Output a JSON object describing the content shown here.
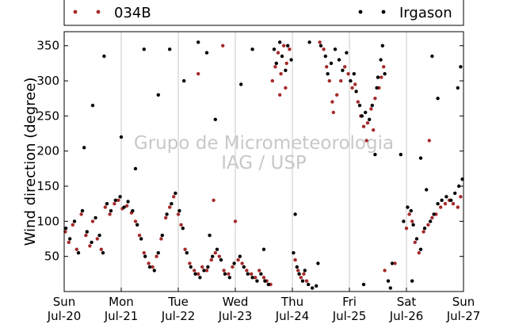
{
  "chart_data": {
    "type": "scatter",
    "ylabel": "Wind direction (degree)",
    "ylim": [
      0,
      370
    ],
    "yticks": [
      50,
      100,
      150,
      200,
      250,
      300,
      350
    ],
    "xlim": [
      0,
      7
    ],
    "xticks": [
      {
        "x": 0,
        "day": "Sun",
        "date": "Jul-20"
      },
      {
        "x": 1,
        "day": "Mon",
        "date": "Jul-21"
      },
      {
        "x": 2,
        "day": "Tue",
        "date": "Jul-22"
      },
      {
        "x": 3,
        "day": "Wed",
        "date": "Jul-23"
      },
      {
        "x": 4,
        "day": "Thu",
        "date": "Jul-24"
      },
      {
        "x": 5,
        "day": "Fri",
        "date": "Jul-25"
      },
      {
        "x": 6,
        "day": "Sat",
        "date": "Jul-26"
      },
      {
        "x": 7,
        "day": "Sun",
        "date": "Jul-27"
      }
    ],
    "vertical_grid": true,
    "legend_placement": "top",
    "watermark": [
      "Grupo de Micrometeorologia",
      "IAG / USP"
    ],
    "series": [
      {
        "name": "034B",
        "color": "#a52a2a",
        "points": [
          [
            0.02,
            85
          ],
          [
            0.08,
            70
          ],
          [
            0.15,
            95
          ],
          [
            0.22,
            60
          ],
          [
            0.3,
            110
          ],
          [
            0.38,
            80
          ],
          [
            0.45,
            65
          ],
          [
            0.5,
            100
          ],
          [
            0.58,
            75
          ],
          [
            0.65,
            60
          ],
          [
            0.72,
            120
          ],
          [
            0.8,
            110
          ],
          [
            0.88,
            125
          ],
          [
            0.95,
            130
          ],
          [
            1.02,
            118
          ],
          [
            1.1,
            122
          ],
          [
            1.18,
            112
          ],
          [
            1.25,
            100
          ],
          [
            1.32,
            80
          ],
          [
            1.4,
            55
          ],
          [
            1.48,
            40
          ],
          [
            1.55,
            35
          ],
          [
            1.62,
            50
          ],
          [
            1.7,
            75
          ],
          [
            1.78,
            105
          ],
          [
            1.85,
            120
          ],
          [
            1.92,
            135
          ],
          [
            2.0,
            110
          ],
          [
            2.05,
            95
          ],
          [
            2.12,
            60
          ],
          [
            2.2,
            40
          ],
          [
            2.28,
            30
          ],
          [
            2.35,
            25
          ],
          [
            2.42,
            35
          ],
          [
            2.5,
            30
          ],
          [
            2.58,
            45
          ],
          [
            2.65,
            55
          ],
          [
            2.72,
            50
          ],
          [
            2.8,
            30
          ],
          [
            2.88,
            25
          ],
          [
            2.95,
            35
          ],
          [
            3.05,
            45
          ],
          [
            3.12,
            40
          ],
          [
            3.2,
            30
          ],
          [
            3.28,
            25
          ],
          [
            3.35,
            20
          ],
          [
            3.42,
            30
          ],
          [
            3.5,
            20
          ],
          [
            3.55,
            15
          ],
          [
            3.62,
            10
          ],
          [
            3.7,
            320
          ],
          [
            3.75,
            340
          ],
          [
            3.8,
            310
          ],
          [
            3.85,
            350
          ],
          [
            3.9,
            325
          ],
          [
            3.95,
            345
          ],
          [
            3.65,
            300
          ],
          [
            3.78,
            280
          ],
          [
            3.88,
            290
          ],
          [
            4.05,
            45
          ],
          [
            4.1,
            30
          ],
          [
            4.15,
            20
          ],
          [
            4.2,
            25
          ],
          [
            4.25,
            15
          ],
          [
            4.48,
            355
          ],
          [
            4.55,
            345
          ],
          [
            4.6,
            320
          ],
          [
            4.65,
            300
          ],
          [
            4.7,
            270
          ],
          [
            4.72,
            255
          ],
          [
            4.78,
            280
          ],
          [
            4.85,
            300
          ],
          [
            4.92,
            320
          ],
          [
            4.98,
            310
          ],
          [
            5.05,
            290
          ],
          [
            5.1,
            295
          ],
          [
            5.15,
            270
          ],
          [
            5.2,
            250
          ],
          [
            5.25,
            235
          ],
          [
            5.32,
            240
          ],
          [
            5.38,
            260
          ],
          [
            5.45,
            275
          ],
          [
            5.52,
            290
          ],
          [
            5.56,
            305
          ],
          [
            5.6,
            320
          ],
          [
            5.42,
            230
          ],
          [
            5.3,
            215
          ],
          [
            5.8,
            40
          ],
          [
            5.62,
            30
          ],
          [
            6.0,
            90
          ],
          [
            6.05,
            110
          ],
          [
            6.1,
            100
          ],
          [
            6.15,
            70
          ],
          [
            6.22,
            55
          ],
          [
            6.3,
            85
          ],
          [
            6.38,
            95
          ],
          [
            6.45,
            105
          ],
          [
            6.52,
            110
          ],
          [
            6.6,
            120
          ],
          [
            6.68,
            125
          ],
          [
            6.75,
            130
          ],
          [
            6.82,
            125
          ],
          [
            6.9,
            120
          ],
          [
            6.95,
            135
          ],
          [
            6.4,
            215
          ],
          [
            2.35,
            310
          ],
          [
            2.62,
            130
          ],
          [
            3.0,
            100
          ],
          [
            2.78,
            350
          ]
        ]
      },
      {
        "name": "Irgason",
        "color": "#000000",
        "points": [
          [
            0.03,
            90
          ],
          [
            0.1,
            75
          ],
          [
            0.18,
            100
          ],
          [
            0.25,
            55
          ],
          [
            0.32,
            115
          ],
          [
            0.4,
            85
          ],
          [
            0.48,
            70
          ],
          [
            0.55,
            105
          ],
          [
            0.62,
            80
          ],
          [
            0.68,
            55
          ],
          [
            0.75,
            125
          ],
          [
            0.82,
            115
          ],
          [
            0.9,
            130
          ],
          [
            0.98,
            135
          ],
          [
            1.05,
            120
          ],
          [
            1.12,
            128
          ],
          [
            1.2,
            115
          ],
          [
            1.28,
            95
          ],
          [
            1.35,
            75
          ],
          [
            1.42,
            50
          ],
          [
            1.5,
            35
          ],
          [
            1.58,
            30
          ],
          [
            1.65,
            55
          ],
          [
            1.72,
            80
          ],
          [
            1.8,
            110
          ],
          [
            1.88,
            125
          ],
          [
            1.95,
            140
          ],
          [
            2.02,
            115
          ],
          [
            2.08,
            90
          ],
          [
            2.15,
            55
          ],
          [
            2.22,
            35
          ],
          [
            2.3,
            25
          ],
          [
            2.38,
            20
          ],
          [
            2.45,
            30
          ],
          [
            2.52,
            35
          ],
          [
            2.6,
            50
          ],
          [
            2.68,
            60
          ],
          [
            2.75,
            45
          ],
          [
            2.82,
            25
          ],
          [
            2.9,
            20
          ],
          [
            2.98,
            40
          ],
          [
            3.08,
            50
          ],
          [
            3.15,
            35
          ],
          [
            3.22,
            25
          ],
          [
            3.3,
            20
          ],
          [
            3.38,
            15
          ],
          [
            3.45,
            25
          ],
          [
            3.52,
            15
          ],
          [
            3.58,
            10
          ],
          [
            3.68,
            345
          ],
          [
            3.72,
            325
          ],
          [
            3.78,
            355
          ],
          [
            3.82,
            335
          ],
          [
            3.88,
            315
          ],
          [
            3.92,
            350
          ],
          [
            3.98,
            330
          ],
          [
            4.02,
            55
          ],
          [
            4.08,
            35
          ],
          [
            4.12,
            25
          ],
          [
            4.18,
            15
          ],
          [
            4.22,
            30
          ],
          [
            4.28,
            10
          ],
          [
            4.35,
            5
          ],
          [
            4.42,
            8
          ],
          [
            4.5,
            350
          ],
          [
            4.58,
            335
          ],
          [
            4.62,
            310
          ],
          [
            4.68,
            325
          ],
          [
            4.75,
            345
          ],
          [
            4.82,
            330
          ],
          [
            4.88,
            315
          ],
          [
            4.95,
            340
          ],
          [
            5.02,
            300
          ],
          [
            5.08,
            310
          ],
          [
            5.12,
            285
          ],
          [
            5.18,
            265
          ],
          [
            5.22,
            250
          ],
          [
            5.28,
            255
          ],
          [
            5.35,
            245
          ],
          [
            5.4,
            265
          ],
          [
            5.48,
            290
          ],
          [
            5.55,
            330
          ],
          [
            5.58,
            350
          ],
          [
            5.62,
            310
          ],
          [
            5.5,
            305
          ],
          [
            5.45,
            195
          ],
          [
            5.68,
            15
          ],
          [
            5.72,
            5
          ],
          [
            5.9,
            195
          ],
          [
            5.95,
            100
          ],
          [
            6.02,
            120
          ],
          [
            6.08,
            115
          ],
          [
            6.12,
            95
          ],
          [
            6.18,
            75
          ],
          [
            6.25,
            60
          ],
          [
            6.32,
            90
          ],
          [
            6.35,
            145
          ],
          [
            6.42,
            100
          ],
          [
            6.48,
            110
          ],
          [
            6.55,
            125
          ],
          [
            6.62,
            130
          ],
          [
            6.7,
            135
          ],
          [
            6.78,
            130
          ],
          [
            6.85,
            140
          ],
          [
            6.92,
            150
          ],
          [
            6.98,
            160
          ],
          [
            0.5,
            265
          ],
          [
            0.7,
            335
          ],
          [
            1.0,
            220
          ],
          [
            1.4,
            345
          ],
          [
            1.65,
            280
          ],
          [
            1.85,
            345
          ],
          [
            2.1,
            300
          ],
          [
            2.35,
            355
          ],
          [
            2.5,
            340
          ],
          [
            2.65,
            245
          ],
          [
            3.1,
            295
          ],
          [
            3.3,
            345
          ],
          [
            4.3,
            355
          ],
          [
            5.25,
            10
          ],
          [
            5.75,
            40
          ],
          [
            6.1,
            15
          ],
          [
            6.45,
            335
          ],
          [
            6.55,
            275
          ],
          [
            6.9,
            290
          ],
          [
            6.95,
            320
          ],
          [
            4.05,
            110
          ],
          [
            3.5,
            60
          ],
          [
            0.35,
            205
          ],
          [
            1.25,
            175
          ],
          [
            6.25,
            190
          ],
          [
            2.55,
            80
          ],
          [
            4.45,
            40
          ]
        ]
      }
    ]
  }
}
